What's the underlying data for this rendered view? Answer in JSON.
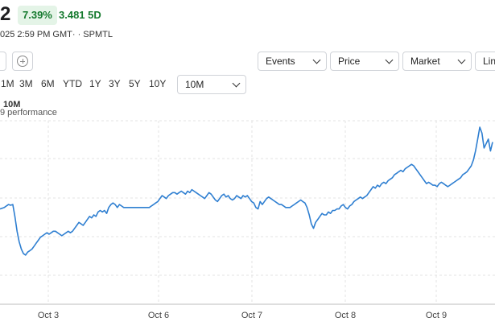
{
  "quote": {
    "price_fragment": "2",
    "change_percent": "7.39%",
    "change_5d": "3.481 5D",
    "market_time": "025 2:59 PM GMT· · SPMTL"
  },
  "toolbar": {
    "left_button_fragment": "",
    "events_label": "Events",
    "price_label": "Price",
    "market_label": "Market",
    "line_label_fragment": "Lin"
  },
  "ranges": {
    "items": [
      "1M",
      "3M",
      "6M",
      "YTD",
      "1Y",
      "3Y",
      "5Y",
      "10Y"
    ],
    "selected": "10M"
  },
  "chart": {
    "title_fragment": "10M",
    "subtitle_fragment": "9 performance"
  },
  "colors": {
    "line": "#2f7fd1",
    "gain_bg": "#e4f4e7",
    "gain_text": "#157a2e",
    "grid": "#e3e3e3"
  },
  "chart_data": {
    "type": "line",
    "title": "10M",
    "subtitle": "9 performance",
    "x_ticks": [
      "Oct 3",
      "Oct 6",
      "Oct 7",
      "Oct 8",
      "Oct 9"
    ],
    "y_tick_labels_visible": false,
    "grid": true,
    "legend": "none",
    "series": [
      {
        "values": [
          37,
          37.5,
          38,
          39,
          40,
          39.5,
          40,
          32,
          22,
          15,
          10,
          7,
          6,
          8,
          9,
          10,
          12,
          14,
          16,
          18,
          19,
          20,
          21,
          20,
          21,
          22,
          22,
          21,
          20,
          19,
          20,
          21,
          22,
          21,
          22,
          24,
          26,
          28,
          27,
          26,
          28,
          30,
          32,
          31,
          33,
          32,
          35,
          36,
          35,
          36,
          34,
          38,
          40,
          41,
          40,
          38,
          40,
          39,
          38,
          38,
          38,
          38,
          38,
          38,
          38,
          38,
          38,
          38,
          38,
          38,
          38,
          39,
          40,
          41,
          42,
          44,
          46,
          45,
          44,
          46,
          47,
          48,
          48,
          47,
          48,
          49,
          48,
          47,
          49,
          48,
          50,
          49,
          48,
          47,
          46,
          45,
          44,
          46,
          48,
          47,
          45,
          43,
          42,
          44,
          46,
          47,
          45,
          46,
          44,
          43,
          44,
          46,
          45,
          44,
          46,
          45,
          46,
          44,
          42,
          41,
          38,
          37,
          42,
          40,
          42,
          44,
          45,
          44,
          43,
          42,
          41,
          40,
          40,
          39,
          38,
          38,
          38,
          39,
          40,
          41,
          42,
          43,
          42,
          41,
          38,
          33,
          27,
          24,
          28,
          30,
          32,
          34,
          33,
          33,
          35,
          34,
          36,
          36,
          37,
          37,
          39,
          40,
          38,
          37,
          39,
          40,
          42,
          43,
          44,
          45,
          44,
          45,
          46,
          48,
          50,
          52,
          51,
          53,
          52,
          54,
          55,
          54,
          56,
          57,
          58,
          60,
          61,
          62,
          63,
          62,
          64,
          65,
          66,
          67,
          66,
          64,
          62,
          60,
          58,
          56,
          54,
          55,
          54,
          53,
          53,
          52,
          54,
          55,
          54,
          53,
          52,
          53,
          54,
          55,
          56,
          57,
          58,
          60,
          61,
          62,
          64,
          66,
          70,
          76,
          84,
          92,
          88,
          78,
          81,
          84,
          76,
          82
        ]
      }
    ]
  }
}
